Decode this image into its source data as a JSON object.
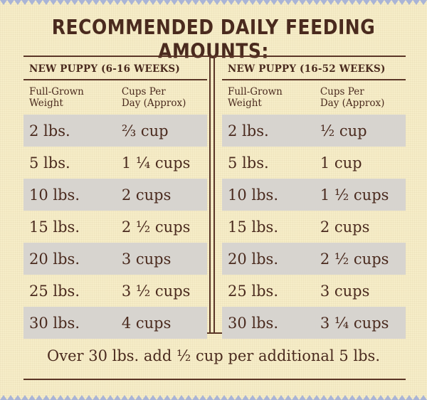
{
  "title": "RECOMMENDED DAILY FEEDING AMOUNTS:",
  "left": {
    "section": "NEW PUPPY (6-16 WEEKS)",
    "col1": "Full-Grown\nWeight",
    "col1_line1": "Full-Grown",
    "col1_line2": "Weight",
    "col2_line1": "Cups Per",
    "col2_line2": "Day (Approx)",
    "rows": [
      {
        "weight": "2 lbs.",
        "cups": "⅔ cup"
      },
      {
        "weight": "5 lbs.",
        "cups": "1 ¼ cups"
      },
      {
        "weight": "10 lbs.",
        "cups": "2 cups"
      },
      {
        "weight": "15 lbs.",
        "cups": "2 ½ cups"
      },
      {
        "weight": "20 lbs.",
        "cups": "3 cups"
      },
      {
        "weight": "25 lbs.",
        "cups": "3 ½ cups"
      },
      {
        "weight": "30 lbs.",
        "cups": "4 cups"
      }
    ]
  },
  "right": {
    "section": "NEW PUPPY (16-52 WEEKS)",
    "col1_line1": "Full-Grown",
    "col1_line2": "Weight",
    "col2_line1": "Cups Per",
    "col2_line2": "Day (Approx)",
    "rows": [
      {
        "weight": "2 lbs.",
        "cups": "½ cup"
      },
      {
        "weight": "5 lbs.",
        "cups": "1 cup"
      },
      {
        "weight": "10 lbs.",
        "cups": "1 ½ cups"
      },
      {
        "weight": "15 lbs.",
        "cups": "2 cups"
      },
      {
        "weight": "20 lbs.",
        "cups": "2 ½ cups"
      },
      {
        "weight": "25 lbs.",
        "cups": "3 cups"
      },
      {
        "weight": "30 lbs.",
        "cups": "3 ¼ cups"
      }
    ]
  },
  "footer": "Over 30 lbs. add ½ cup per additional 5 lbs.",
  "colors": {
    "background": "#f6edc8",
    "text": "#4a2a1e",
    "row_shade": "#d7d4cf",
    "zigzag": "#a9b4d6"
  }
}
